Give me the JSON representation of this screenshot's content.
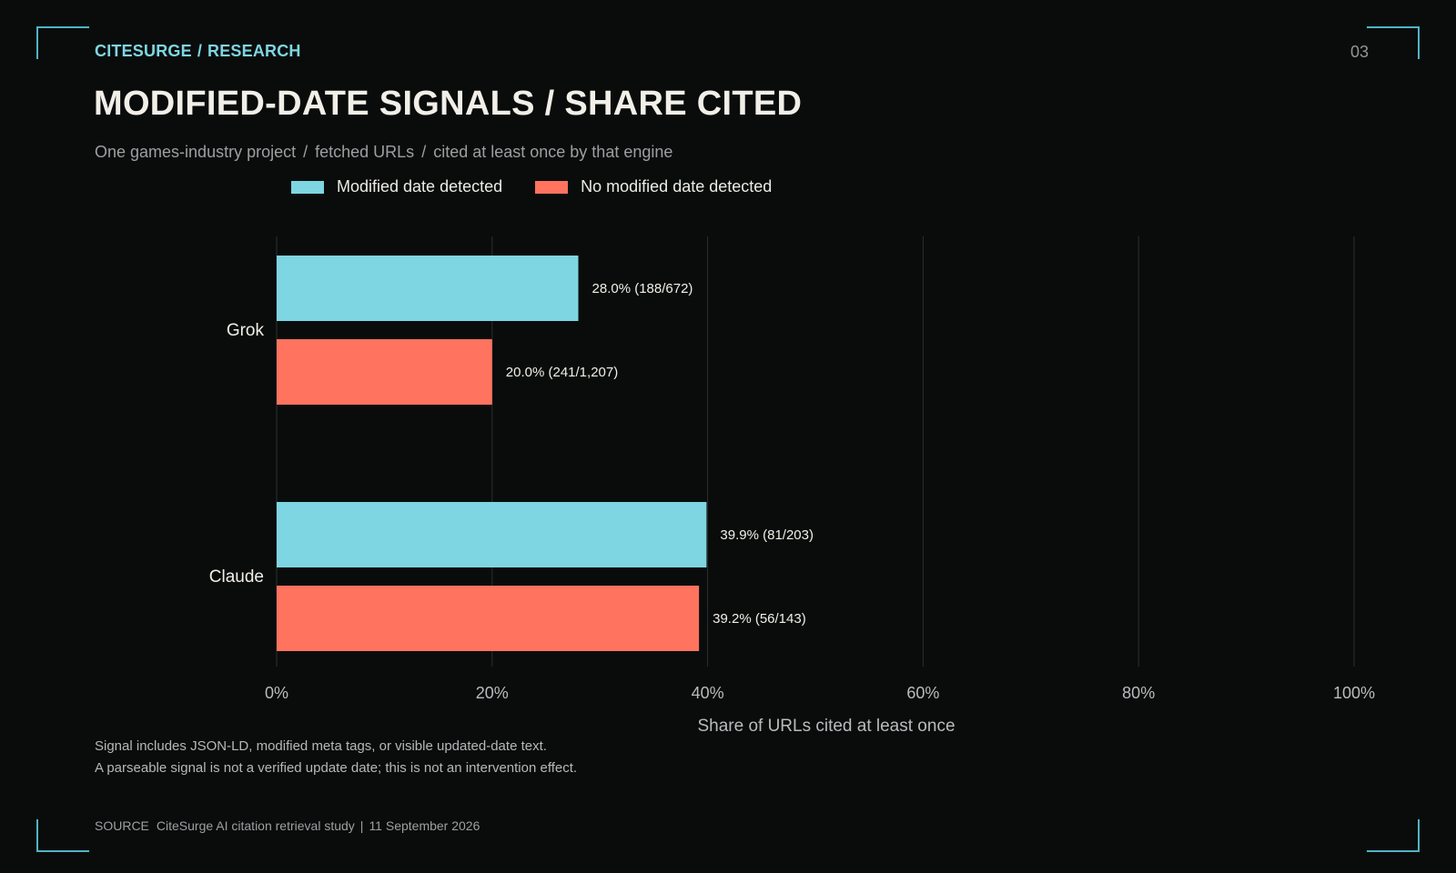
{
  "header": {
    "brand": "CITESURGE",
    "brand_sep": "/",
    "section": "RESEARCH",
    "page_number": "03"
  },
  "title": "MODIFIED-DATE SIGNALS / SHARE CITED",
  "subtitle": {
    "part1": "One games-industry project",
    "part2": "fetched URLs",
    "part3": "cited at least once by that engine",
    "sep": "/"
  },
  "colors": {
    "modified": "#7dd6e1",
    "no_modified": "#ff735f",
    "accent": "#7fd6e2"
  },
  "chart_data": {
    "type": "bar",
    "orientation": "horizontal",
    "categories": [
      "Grok",
      "Claude"
    ],
    "series": [
      {
        "name": "Modified date detected",
        "values": [
          28.0,
          39.9
        ],
        "labels": [
          "28.0%  (188/672)",
          "39.9%  (81/203)"
        ]
      },
      {
        "name": "No modified date detected",
        "values": [
          20.0,
          39.2
        ],
        "labels": [
          "20.0%  (241/1,207)",
          "39.2%  (56/143)"
        ]
      }
    ],
    "xlabel": "Share of URLs cited at least once",
    "xlim": [
      0,
      100
    ],
    "xticks": [
      0,
      20,
      40,
      60,
      80,
      100
    ],
    "xtick_labels": [
      "0%",
      "20%",
      "40%",
      "60%",
      "80%",
      "100%"
    ],
    "grid": "vertical",
    "legend_position": "top"
  },
  "notes": {
    "line1": "Signal includes JSON-LD, modified meta tags, or visible updated-date text.",
    "line2": "A parseable signal is not a verified update date; this is not an intervention effect."
  },
  "source": {
    "label": "SOURCE",
    "text": "CiteSurge AI citation retrieval study",
    "sep": "|",
    "date": "11 September 2026"
  }
}
